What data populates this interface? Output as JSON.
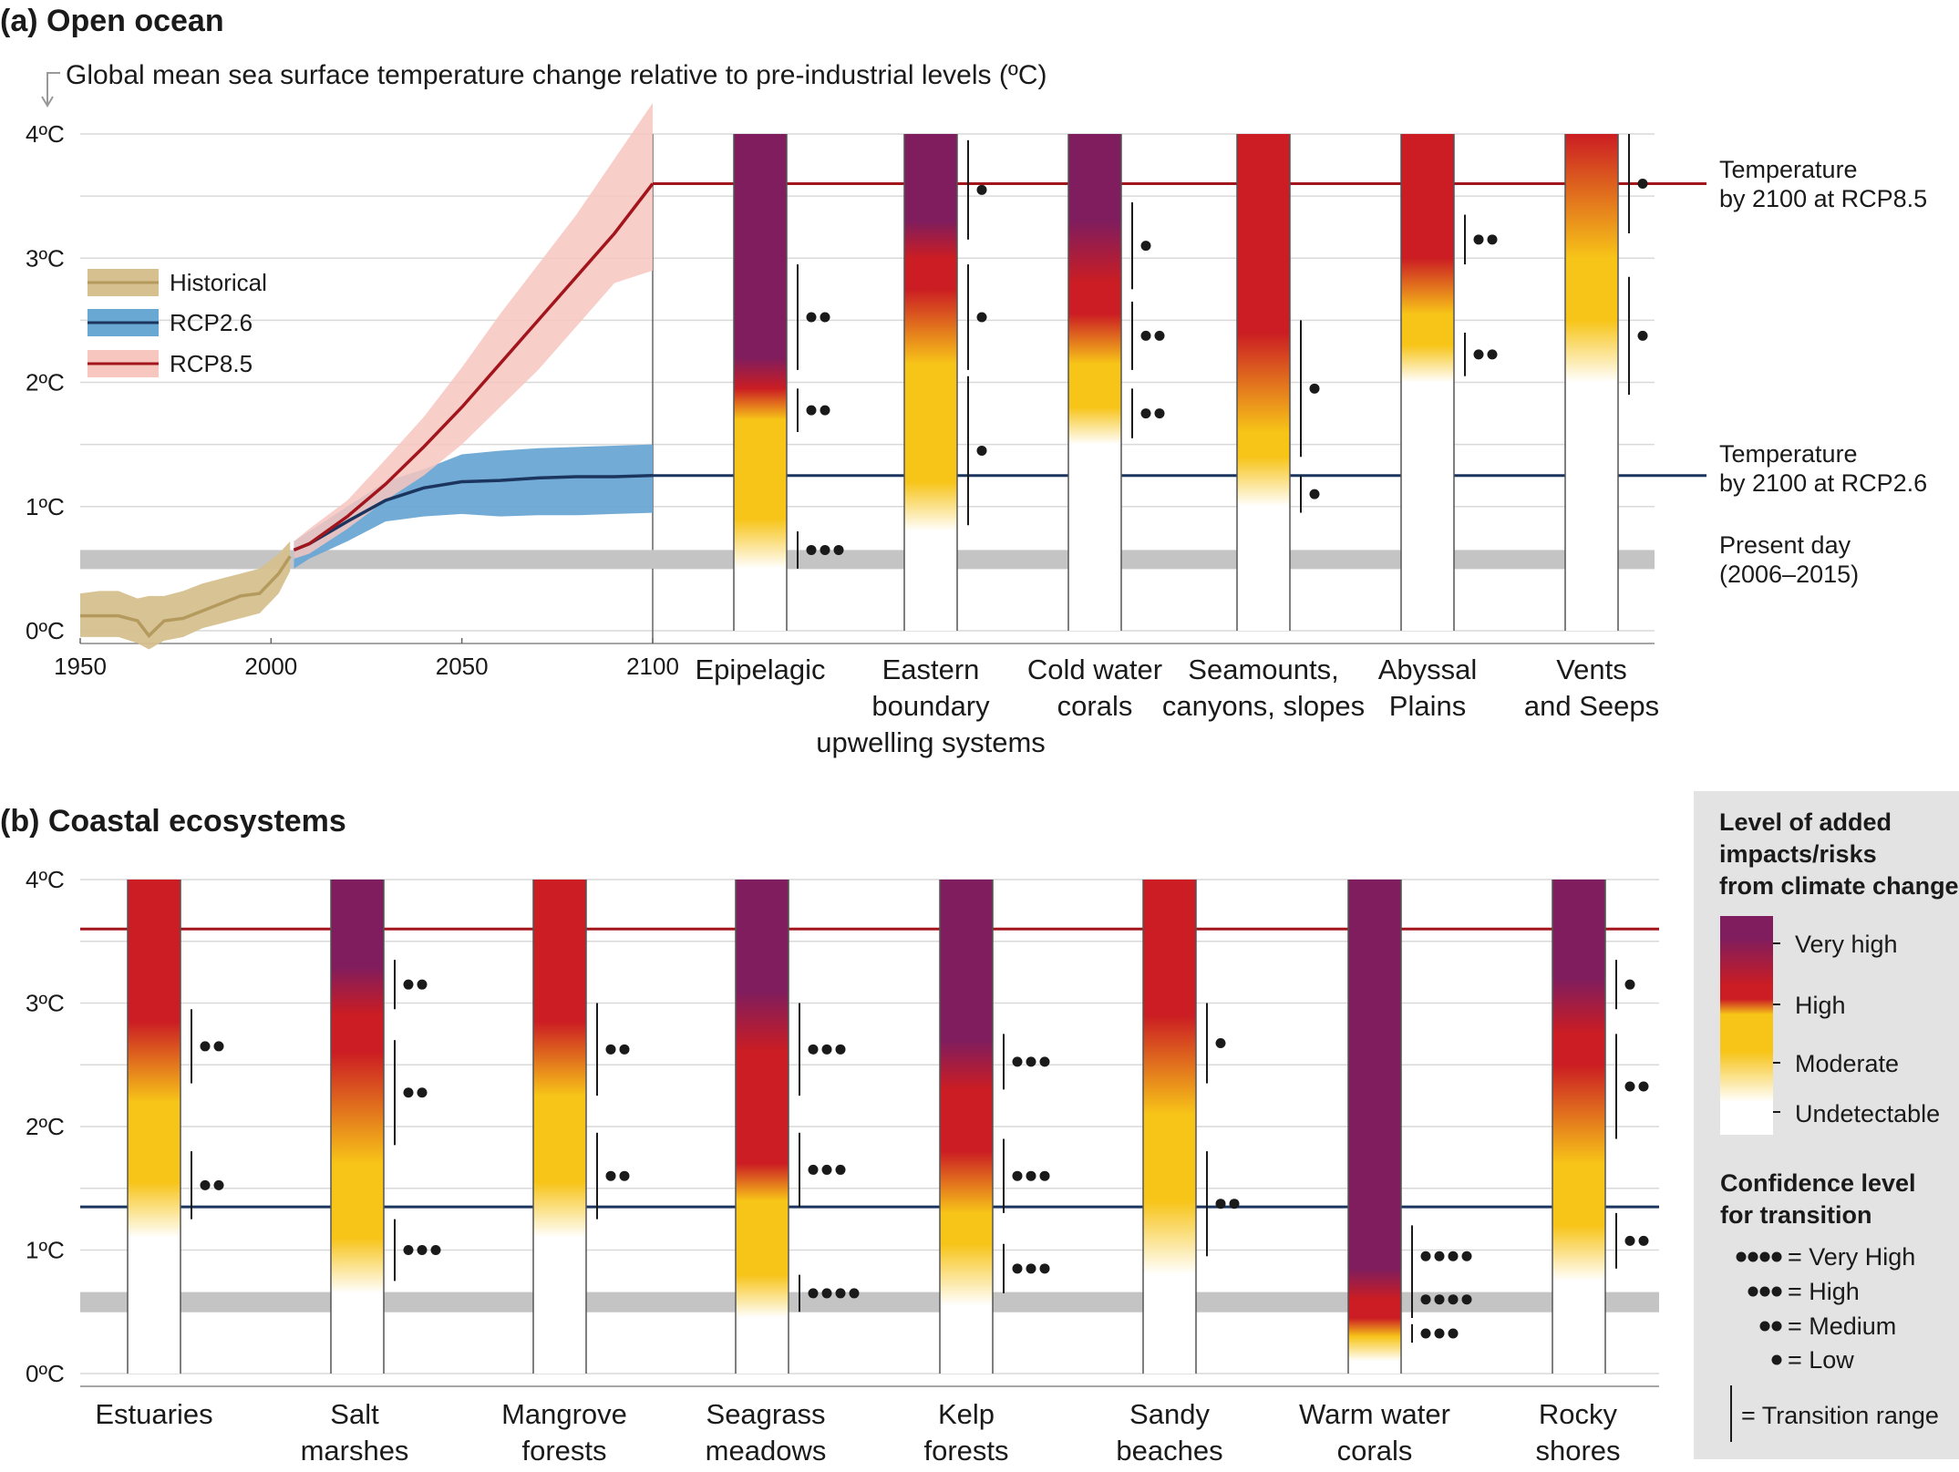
{
  "colors": {
    "very_high": "#7f1d5e",
    "high": "#cb1d23",
    "moderate": "#f7c418",
    "undetectable": "#ffffff",
    "historical": "#b59a5e",
    "historical_band": "#d6c08f",
    "rcp26": "#1c355e",
    "rcp26_band": "#6aa8d4",
    "rcp85": "#a3151c",
    "rcp85_band": "#f7c6bf",
    "present_day": "#c4c4c4",
    "key_background": "#e3e3e3"
  },
  "panel_a": {
    "title": "(a) Open ocean",
    "axis_title": "Global mean sea surface temperature change relative to pre-industrial levels (ºC)",
    "y_ticks": [
      "0ºC",
      "1ºC",
      "2ºC",
      "3ºC",
      "4ºC"
    ],
    "x_ticks": [
      "1950",
      "2000",
      "2050",
      "2100"
    ],
    "legend": [
      "Historical",
      "RCP2.6",
      "RCP8.5"
    ],
    "side_labels": {
      "rcp85": [
        "Temperature",
        "by 2100 at RCP8.5"
      ],
      "rcp26": [
        "Temperature",
        "by 2100 at RCP2.6"
      ],
      "present": [
        "Present day",
        "(2006–2015)"
      ]
    },
    "categories": [
      [
        "Epipelagic"
      ],
      [
        "Eastern",
        "boundary",
        "upwelling systems"
      ],
      [
        "Cold water",
        "corals"
      ],
      [
        "Seamounts,",
        "canyons, slopes"
      ],
      [
        "Abyssal",
        "Plains"
      ],
      [
        "Vents",
        "and Seeps"
      ]
    ]
  },
  "panel_b": {
    "title": "(b) Coastal ecosystems",
    "y_ticks": [
      "0ºC",
      "1ºC",
      "2ºC",
      "3ºC",
      "4ºC"
    ],
    "categories": [
      [
        "Estuaries"
      ],
      [
        "Salt",
        "marshes"
      ],
      [
        "Mangrove",
        "forests"
      ],
      [
        "Seagrass",
        "meadows"
      ],
      [
        "Kelp",
        "forests"
      ],
      [
        "Sandy",
        "beaches"
      ],
      [
        "Warm water",
        "corals"
      ],
      [
        "Rocky",
        "shores"
      ]
    ]
  },
  "key": {
    "risk_title": [
      "Level of added",
      "impacts/risks",
      "from climate change"
    ],
    "risk_levels": [
      "Very high",
      "High",
      "Moderate",
      "Undetectable"
    ],
    "confidence_title": [
      "Confidence level",
      "for transition"
    ],
    "confidence_levels": [
      "= Very High",
      "= High",
      "= Medium",
      "= Low"
    ],
    "transition_range": "= Transition range"
  },
  "chart_data": [
    {
      "type": "line",
      "title": "(a) Open ocean",
      "ylabel": "Global mean sea surface temperature change relative to pre-industrial levels (ºC)",
      "xlim": [
        1950,
        2100
      ],
      "ylim": [
        0,
        4
      ],
      "reference_lines": {
        "rcp85_2100": 3.6,
        "rcp26_2100": 1.25,
        "present_day": [
          0.5,
          0.65
        ]
      },
      "series": [
        {
          "name": "Historical",
          "x": [
            1950,
            1955,
            1960,
            1965,
            1968,
            1972,
            1977,
            1982,
            1987,
            1992,
            1997,
            2002,
            2005
          ],
          "y": [
            0.12,
            0.12,
            0.12,
            0.08,
            -0.04,
            0.08,
            0.1,
            0.16,
            0.22,
            0.28,
            0.3,
            0.46,
            0.6
          ],
          "lower": [
            -0.05,
            -0.05,
            -0.05,
            -0.1,
            -0.15,
            -0.08,
            -0.05,
            0.02,
            0.06,
            0.1,
            0.14,
            0.3,
            0.48
          ],
          "upper": [
            0.3,
            0.32,
            0.32,
            0.26,
            0.28,
            0.28,
            0.32,
            0.38,
            0.42,
            0.46,
            0.5,
            0.62,
            0.72
          ]
        },
        {
          "name": "RCP2.6",
          "x": [
            2006,
            2010,
            2020,
            2030,
            2040,
            2050,
            2060,
            2070,
            2080,
            2090,
            2100
          ],
          "y": [
            0.65,
            0.7,
            0.88,
            1.05,
            1.15,
            1.2,
            1.21,
            1.23,
            1.24,
            1.24,
            1.25
          ],
          "lower": [
            0.5,
            0.58,
            0.72,
            0.88,
            0.92,
            0.94,
            0.92,
            0.93,
            0.93,
            0.94,
            0.95
          ],
          "upper": [
            0.72,
            0.8,
            1.0,
            1.2,
            1.3,
            1.42,
            1.45,
            1.47,
            1.48,
            1.49,
            1.5
          ]
        },
        {
          "name": "RCP8.5",
          "x": [
            2006,
            2010,
            2020,
            2030,
            2040,
            2050,
            2060,
            2070,
            2080,
            2090,
            2100
          ],
          "y": [
            0.65,
            0.7,
            0.92,
            1.18,
            1.48,
            1.8,
            2.15,
            2.5,
            2.85,
            3.2,
            3.6
          ],
          "lower": [
            0.58,
            0.62,
            0.82,
            1.05,
            1.25,
            1.5,
            1.8,
            2.1,
            2.45,
            2.8,
            2.9
          ],
          "upper": [
            0.72,
            0.82,
            1.05,
            1.38,
            1.72,
            2.12,
            2.55,
            2.95,
            3.35,
            3.8,
            4.25
          ]
        }
      ]
    },
    {
      "type": "heatmap",
      "title": "(a) Open ocean",
      "ylabel": "ºC",
      "ylim": [
        0,
        4
      ],
      "scale": [
        "Undetectable",
        "Moderate",
        "High",
        "Very high"
      ],
      "ecosystems": [
        {
          "name": "Epipelagic",
          "colour_stops": [
            [
              0.5,
              "Undetectable"
            ],
            [
              0.9,
              "Moderate"
            ],
            [
              1.7,
              "Moderate"
            ],
            [
              1.95,
              "High"
            ],
            [
              2.2,
              "Very high"
            ]
          ],
          "transitions": [
            {
              "range": [
                0.5,
                0.8
              ],
              "dots": 3
            },
            {
              "range": [
                1.6,
                1.95
              ],
              "dots": 2
            },
            {
              "range": [
                2.1,
                2.95
              ],
              "dots": 2
            }
          ]
        },
        {
          "name": "Eastern boundary upwelling systems",
          "colour_stops": [
            [
              0.8,
              "Undetectable"
            ],
            [
              1.2,
              "Moderate"
            ],
            [
              2.15,
              "Moderate"
            ],
            [
              2.75,
              "High"
            ],
            [
              3.0,
              "High"
            ],
            [
              3.3,
              "Very high"
            ]
          ],
          "transitions": [
            {
              "range": [
                0.85,
                2.05
              ],
              "dots": 1
            },
            {
              "range": [
                2.1,
                2.95
              ],
              "dots": 1
            },
            {
              "range": [
                3.15,
                3.95
              ],
              "dots": 1
            }
          ]
        },
        {
          "name": "Cold water corals",
          "colour_stops": [
            [
              1.5,
              "Undetectable"
            ],
            [
              1.8,
              "Moderate"
            ],
            [
              2.15,
              "Moderate"
            ],
            [
              2.55,
              "High"
            ],
            [
              2.8,
              "High"
            ],
            [
              3.3,
              "Very high"
            ]
          ],
          "transitions": [
            {
              "range": [
                1.55,
                1.95
              ],
              "dots": 2
            },
            {
              "range": [
                2.1,
                2.65
              ],
              "dots": 2
            },
            {
              "range": [
                2.75,
                3.45
              ],
              "dots": 1
            }
          ]
        },
        {
          "name": "Seamounts, canyons, slopes",
          "colour_stops": [
            [
              1.0,
              "Undetectable"
            ],
            [
              1.4,
              "Moderate"
            ],
            [
              1.6,
              "Moderate"
            ],
            [
              2.4,
              "High"
            ]
          ],
          "transitions": [
            {
              "range": [
                0.95,
                1.25
              ],
              "dots": 1
            },
            {
              "range": [
                1.4,
                2.5
              ],
              "dots": 1
            }
          ]
        },
        {
          "name": "Abyssal Plains",
          "colour_stops": [
            [
              2.0,
              "Undetectable"
            ],
            [
              2.3,
              "Moderate"
            ],
            [
              2.55,
              "Moderate"
            ],
            [
              3.0,
              "High"
            ]
          ],
          "transitions": [
            {
              "range": [
                2.05,
                2.4
              ],
              "dots": 2
            },
            {
              "range": [
                2.95,
                3.35
              ],
              "dots": 2
            }
          ]
        },
        {
          "name": "Vents and Seeps",
          "colour_stops": [
            [
              2.0,
              "Undetectable"
            ],
            [
              2.5,
              "Moderate"
            ],
            [
              3.0,
              "Moderate"
            ],
            [
              4.0,
              "High"
            ]
          ],
          "transitions": [
            {
              "range": [
                1.9,
                2.85
              ],
              "dots": 1
            },
            {
              "range": [
                3.2,
                4.0
              ],
              "dots": 1
            }
          ]
        }
      ]
    },
    {
      "type": "heatmap",
      "title": "(b) Coastal ecosystems",
      "ylabel": "ºC",
      "ylim": [
        0,
        4
      ],
      "reference_lines": {
        "rcp85_2100": 3.6,
        "rcp26_2100": 1.35,
        "present_day": [
          0.5,
          0.66
        ]
      },
      "scale": [
        "Undetectable",
        "Moderate",
        "High",
        "Very high"
      ],
      "ecosystems": [
        {
          "name": "Estuaries",
          "colour_stops": [
            [
              1.1,
              "Undetectable"
            ],
            [
              1.55,
              "Moderate"
            ],
            [
              2.2,
              "Moderate"
            ],
            [
              2.85,
              "High"
            ]
          ],
          "transitions": [
            {
              "range": [
                1.25,
                1.8
              ],
              "dots": 2
            },
            {
              "range": [
                2.35,
                2.95
              ],
              "dots": 2
            }
          ]
        },
        {
          "name": "Salt marshes",
          "colour_stops": [
            [
              0.65,
              "Undetectable"
            ],
            [
              1.1,
              "Moderate"
            ],
            [
              1.7,
              "Moderate"
            ],
            [
              2.6,
              "High"
            ],
            [
              2.9,
              "High"
            ],
            [
              3.3,
              "Very high"
            ]
          ],
          "transitions": [
            {
              "range": [
                0.75,
                1.25
              ],
              "dots": 3
            },
            {
              "range": [
                1.85,
                2.7
              ],
              "dots": 2
            },
            {
              "range": [
                2.95,
                3.35
              ],
              "dots": 2
            }
          ]
        },
        {
          "name": "Mangrove forests",
          "colour_stops": [
            [
              1.1,
              "Undetectable"
            ],
            [
              1.55,
              "Moderate"
            ],
            [
              2.25,
              "Moderate"
            ],
            [
              2.85,
              "High"
            ]
          ],
          "transitions": [
            {
              "range": [
                1.25,
                1.95
              ],
              "dots": 2
            },
            {
              "range": [
                2.25,
                3.0
              ],
              "dots": 2
            }
          ]
        },
        {
          "name": "Seagrass meadows",
          "colour_stops": [
            [
              0.45,
              "Undetectable"
            ],
            [
              0.8,
              "Moderate"
            ],
            [
              1.4,
              "Moderate"
            ],
            [
              1.7,
              "High"
            ],
            [
              2.6,
              "High"
            ],
            [
              3.1,
              "Very high"
            ]
          ],
          "transitions": [
            {
              "range": [
                0.5,
                0.8
              ],
              "dots": 4
            },
            {
              "range": [
                1.35,
                1.95
              ],
              "dots": 3
            },
            {
              "range": [
                2.25,
                3.0
              ],
              "dots": 3
            }
          ]
        },
        {
          "name": "Kelp forests",
          "colour_stops": [
            [
              0.55,
              "Undetectable"
            ],
            [
              1.05,
              "Moderate"
            ],
            [
              1.3,
              "Moderate"
            ],
            [
              1.8,
              "High"
            ],
            [
              2.3,
              "High"
            ],
            [
              2.7,
              "Very high"
            ]
          ],
          "transitions": [
            {
              "range": [
                0.65,
                1.05
              ],
              "dots": 3
            },
            {
              "range": [
                1.3,
                1.9
              ],
              "dots": 3
            },
            {
              "range": [
                2.3,
                2.75
              ],
              "dots": 3
            }
          ]
        },
        {
          "name": "Sandy beaches",
          "colour_stops": [
            [
              0.8,
              "Undetectable"
            ],
            [
              1.4,
              "Moderate"
            ],
            [
              2.1,
              "Moderate"
            ],
            [
              2.9,
              "High"
            ]
          ],
          "transitions": [
            {
              "range": [
                0.95,
                1.8
              ],
              "dots": 2
            },
            {
              "range": [
                2.35,
                3.0
              ],
              "dots": 1
            }
          ]
        },
        {
          "name": "Warm water corals",
          "colour_stops": [
            [
              0.1,
              "Undetectable"
            ],
            [
              0.3,
              "Moderate"
            ],
            [
              0.45,
              "High"
            ],
            [
              0.6,
              "High"
            ],
            [
              0.85,
              "Very high"
            ]
          ],
          "transitions": [
            {
              "range": [
                0.25,
                0.4
              ],
              "dots": 3
            },
            {
              "range": [
                0.45,
                0.75
              ],
              "dots": 4
            },
            {
              "range": [
                0.7,
                1.2
              ],
              "dots": 4
            }
          ]
        },
        {
          "name": "Rocky shores",
          "colour_stops": [
            [
              0.75,
              "Undetectable"
            ],
            [
              1.2,
              "Moderate"
            ],
            [
              1.7,
              "Moderate"
            ],
            [
              2.5,
              "High"
            ],
            [
              2.75,
              "High"
            ],
            [
              3.2,
              "Very high"
            ]
          ],
          "transitions": [
            {
              "range": [
                0.85,
                1.3
              ],
              "dots": 2
            },
            {
              "range": [
                1.9,
                2.75
              ],
              "dots": 2
            },
            {
              "range": [
                2.95,
                3.35
              ],
              "dots": 1
            }
          ]
        }
      ]
    }
  ]
}
